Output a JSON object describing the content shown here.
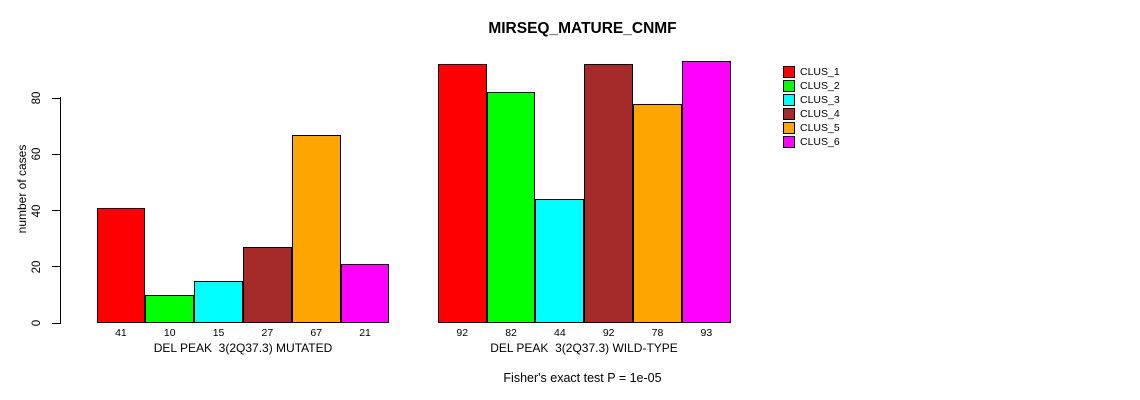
{
  "chart_data": {
    "type": "bar",
    "title": "MIRSEQ_MATURE_CNMF",
    "ylabel": "number of cases",
    "footer": "Fisher's exact test P = 1e-05",
    "ylim": [
      0,
      93
    ],
    "yticks": [
      0,
      20,
      40,
      60,
      80
    ],
    "grid": false,
    "legend_position": "right",
    "legend": [
      {
        "label": "CLUS_1",
        "color": "#FF0000"
      },
      {
        "label": "CLUS_2",
        "color": "#00FF00"
      },
      {
        "label": "CLUS_3",
        "color": "#00FFFF"
      },
      {
        "label": "CLUS_4",
        "color": "#A52A2A"
      },
      {
        "label": "CLUS_5",
        "color": "#FFA500"
      },
      {
        "label": "CLUS_6",
        "color": "#FF00FF"
      }
    ],
    "groups": [
      {
        "label": "DEL PEAK  3(2Q37.3) MUTATED",
        "categories": [
          "CLUS_1",
          "CLUS_2",
          "CLUS_3",
          "CLUS_4",
          "CLUS_5",
          "CLUS_6"
        ],
        "values": [
          41,
          10,
          15,
          27,
          67,
          21
        ]
      },
      {
        "label": "DEL PEAK  3(2Q37.3) WILD-TYPE",
        "categories": [
          "CLUS_1",
          "CLUS_2",
          "CLUS_3",
          "CLUS_4",
          "CLUS_5",
          "CLUS_6"
        ],
        "values": [
          92,
          82,
          44,
          92,
          78,
          93
        ]
      }
    ]
  }
}
